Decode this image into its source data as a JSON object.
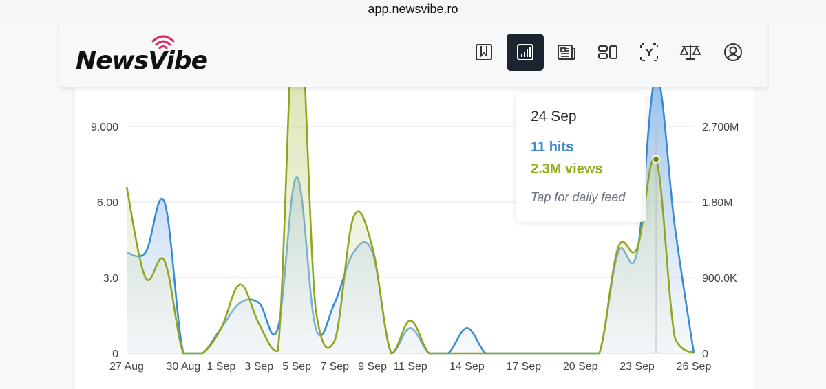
{
  "browser": {
    "url": "app.newsvibe.ro"
  },
  "brand": {
    "name": "NewsVibe",
    "accent": "#e8245e"
  },
  "nav": {
    "items": [
      {
        "name": "bookmark",
        "active": false
      },
      {
        "name": "stats",
        "active": true
      },
      {
        "name": "news",
        "active": false
      },
      {
        "name": "layout",
        "active": false
      },
      {
        "name": "focus",
        "active": false
      },
      {
        "name": "scale",
        "active": false
      },
      {
        "name": "account",
        "active": false
      }
    ]
  },
  "tooltip": {
    "date": "24 Sep",
    "hits": "11 hits",
    "views": "2.3M views",
    "action": "Tap for daily feed"
  },
  "chart_data": {
    "type": "area",
    "categories": [
      "27 Aug",
      "28 Aug",
      "29 Aug",
      "30 Aug",
      "31 Aug",
      "1 Sep",
      "2 Sep",
      "3 Sep",
      "4 Sep",
      "5 Sep",
      "6 Sep",
      "7 Sep",
      "8 Sep",
      "9 Sep",
      "10 Sep",
      "11 Sep",
      "12 Sep",
      "13 Sep",
      "14 Sep",
      "15 Sep",
      "16 Sep",
      "17 Sep",
      "18 Sep",
      "19 Sep",
      "20 Sep",
      "21 Sep",
      "22 Sep",
      "23 Sep",
      "24 Sep",
      "25 Sep",
      "26 Sep"
    ],
    "x_tick_labels": [
      "27 Aug",
      "30 Aug",
      "1 Sep",
      "3 Sep",
      "5 Sep",
      "7 Sep",
      "9 Sep",
      "11 Sep",
      "14 Sep",
      "17 Sep",
      "20 Sep",
      "23 Sep",
      "26 Sep"
    ],
    "y_left_ticks": [
      "0",
      "3.0",
      "6.00",
      "9.000"
    ],
    "y_right_ticks": [
      "0",
      "900.0K",
      "1.80M",
      "2.700M"
    ],
    "y_left_lim": [
      0,
      11
    ],
    "y_right_lim": [
      0,
      3300000
    ],
    "series": [
      {
        "key": "hits",
        "color": "#3b8bd0",
        "axis": "left",
        "values": [
          4,
          4,
          6,
          0,
          0,
          1,
          2,
          2,
          1,
          7,
          1,
          2,
          4,
          4,
          0,
          1,
          0,
          0,
          1,
          0,
          0,
          0,
          0,
          0,
          0,
          0,
          4,
          4,
          11,
          5,
          0
        ]
      },
      {
        "key": "views",
        "color": "#8fa51b",
        "axis": "right",
        "values": [
          1980000,
          900000,
          1100000,
          0,
          0,
          300000,
          820000,
          350000,
          30000,
          4500000,
          520000,
          150000,
          1620000,
          1260000,
          0,
          390000,
          0,
          0,
          0,
          0,
          0,
          0,
          0,
          0,
          0,
          0,
          1260000,
          1250000,
          2310000,
          180000,
          0
        ]
      }
    ],
    "highlight_index": 28,
    "grid": true
  }
}
